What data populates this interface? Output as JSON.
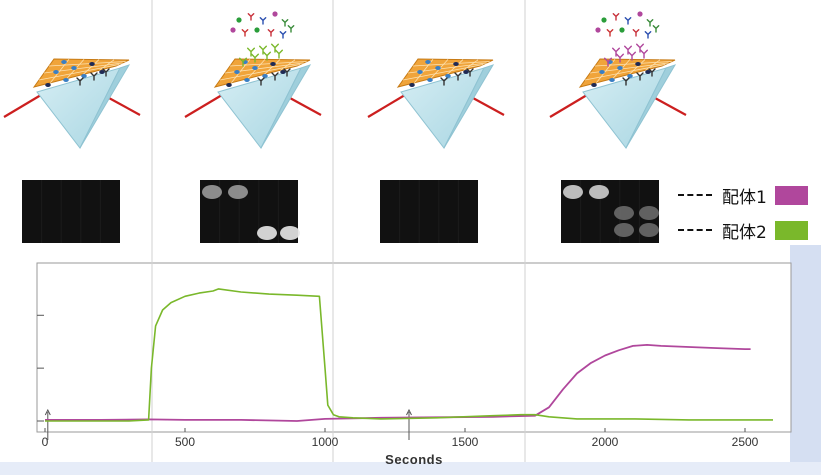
{
  "legend": [
    {
      "label": "配体1",
      "color": "#b0479c"
    },
    {
      "label": "配体2",
      "color": "#7ab82b"
    }
  ],
  "illustrations": [
    {
      "name": "baseline",
      "molecules_above": false,
      "bound": "none",
      "gel_bands": "none"
    },
    {
      "name": "ligand-2-binding",
      "molecules_above": true,
      "bound": "ligand-2",
      "gel_bands": "two-bright"
    },
    {
      "name": "baseline-2",
      "molecules_above": false,
      "bound": "none",
      "gel_bands": "none"
    },
    {
      "name": "ligand-1-binding",
      "molecules_above": true,
      "bound": "ligand-1",
      "gel_bands": "two-bright"
    }
  ],
  "chart_data": {
    "type": "line",
    "xlabel": "Seconds",
    "ylabel": "",
    "xlim": [
      0,
      2600
    ],
    "ylim": [
      0,
      1.4
    ],
    "x_ticks": [
      0,
      500,
      1000,
      1500,
      2000,
      2500
    ],
    "y_ticks": [
      0,
      0.5,
      1.0
    ],
    "phase_dividers": [
      370,
      1000,
      1690
    ],
    "series": [
      {
        "name": "配体1",
        "color": "#b0479c",
        "x": [
          0,
          200,
          370,
          500,
          700,
          900,
          1000,
          1200,
          1400,
          1600,
          1750,
          1800,
          1850,
          1900,
          1950,
          2000,
          2050,
          2100,
          2150,
          2200,
          2300,
          2400,
          2500,
          2520
        ],
        "y": [
          0.01,
          0.01,
          0.015,
          0.01,
          0.01,
          0.0,
          0.02,
          0.03,
          0.035,
          0.04,
          0.05,
          0.13,
          0.3,
          0.45,
          0.55,
          0.62,
          0.67,
          0.71,
          0.72,
          0.71,
          0.7,
          0.69,
          0.68,
          0.68
        ]
      },
      {
        "name": "配体2",
        "color": "#7ab82b",
        "x": [
          0,
          300,
          370,
          380,
          395,
          420,
          450,
          500,
          550,
          600,
          620,
          700,
          800,
          900,
          980,
          1000,
          1010,
          1030,
          1050,
          1100,
          1200,
          1400,
          1600,
          1700,
          1750,
          1800,
          1900,
          2100,
          2300,
          2500,
          2600
        ],
        "y": [
          0.0,
          0.0,
          0.01,
          0.5,
          0.9,
          1.05,
          1.12,
          1.18,
          1.21,
          1.23,
          1.25,
          1.22,
          1.2,
          1.19,
          1.18,
          0.5,
          0.15,
          0.06,
          0.04,
          0.03,
          0.02,
          0.03,
          0.05,
          0.06,
          0.06,
          0.04,
          0.02,
          0.02,
          0.01,
          0.01,
          0.01
        ]
      }
    ]
  }
}
